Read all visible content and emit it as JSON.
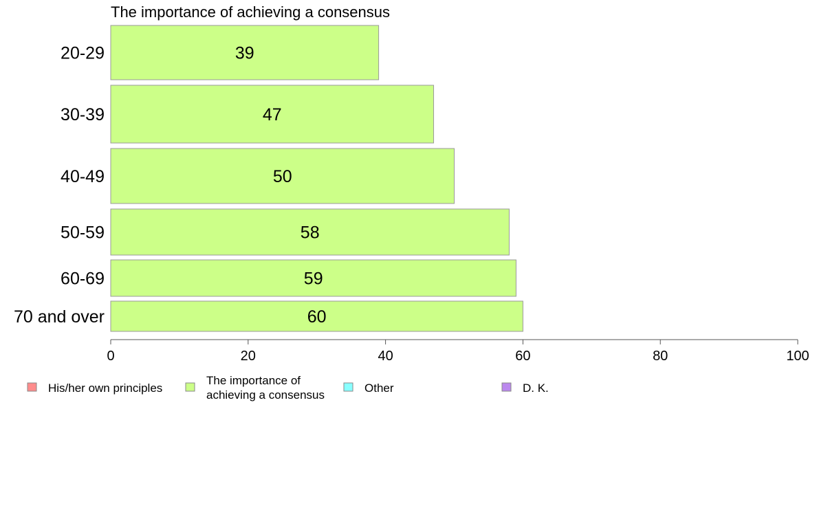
{
  "chart_data": {
    "type": "bar",
    "orientation": "horizontal",
    "title": "The importance of achieving a consensus",
    "categories": [
      "20-29",
      "30-39",
      "40-49",
      "50-59",
      "60-69",
      "70 and over"
    ],
    "series": [
      {
        "name": "The importance of achieving a consensus",
        "values": [
          39,
          47,
          50,
          58,
          59,
          60
        ]
      }
    ],
    "xlim": [
      0,
      100
    ],
    "xticks": [
      0,
      20,
      40,
      60,
      80,
      100
    ],
    "grid": false,
    "legend_position": "bottom",
    "legend": [
      {
        "label": "His/her own principles",
        "color": "#ff8c8c"
      },
      {
        "label": "The importance of achieving a consensus",
        "lines": [
          "The importance of",
          "achieving a consensus"
        ],
        "color": "#ccff88"
      },
      {
        "label": "Other",
        "color": "#88ffff"
      },
      {
        "label": "D. K.",
        "color": "#bb88ee"
      }
    ],
    "bar_color": "#ccff88"
  }
}
